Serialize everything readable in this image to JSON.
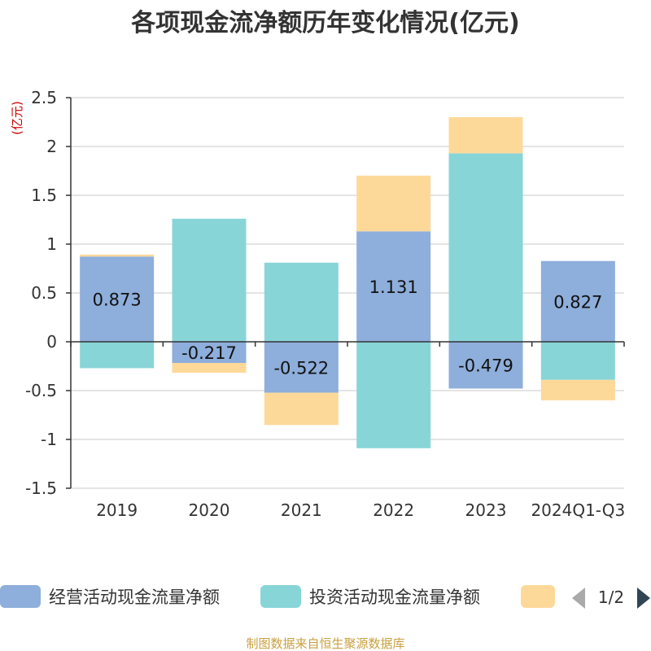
{
  "chart_data": {
    "type": "bar",
    "stacked": true,
    "title": "各项现金流净额历年变化情况(亿元)",
    "unit_label": "(亿元)",
    "categories": [
      "2019",
      "2020",
      "2021",
      "2022",
      "2023",
      "2024Q1-Q3"
    ],
    "ylim": [
      -1.5,
      2.5
    ],
    "yticks": [
      2.5,
      2,
      1.5,
      1,
      0.5,
      0,
      -0.5,
      -1,
      -1.5
    ],
    "grid": true,
    "series": [
      {
        "name": "经营活动现金流量净额",
        "color": "#8eaedb",
        "values": [
          0.873,
          -0.217,
          -0.522,
          1.131,
          -0.479,
          0.827
        ],
        "labels": [
          "0.873",
          "-0.217",
          "-0.522",
          "1.131",
          "-0.479",
          "0.827"
        ]
      },
      {
        "name": "投资活动现金流量净额",
        "color": "#88d5d8",
        "values": [
          -0.27,
          1.26,
          0.81,
          -1.09,
          1.93,
          -0.39
        ]
      },
      {
        "color": "#fdd999",
        "values": [
          0.02,
          -0.1,
          -0.33,
          0.57,
          0.37,
          -0.21
        ]
      }
    ],
    "legend": {
      "position": "bottom",
      "page": "1/2"
    },
    "source": "制图数据来自恒生聚源数据库"
  }
}
